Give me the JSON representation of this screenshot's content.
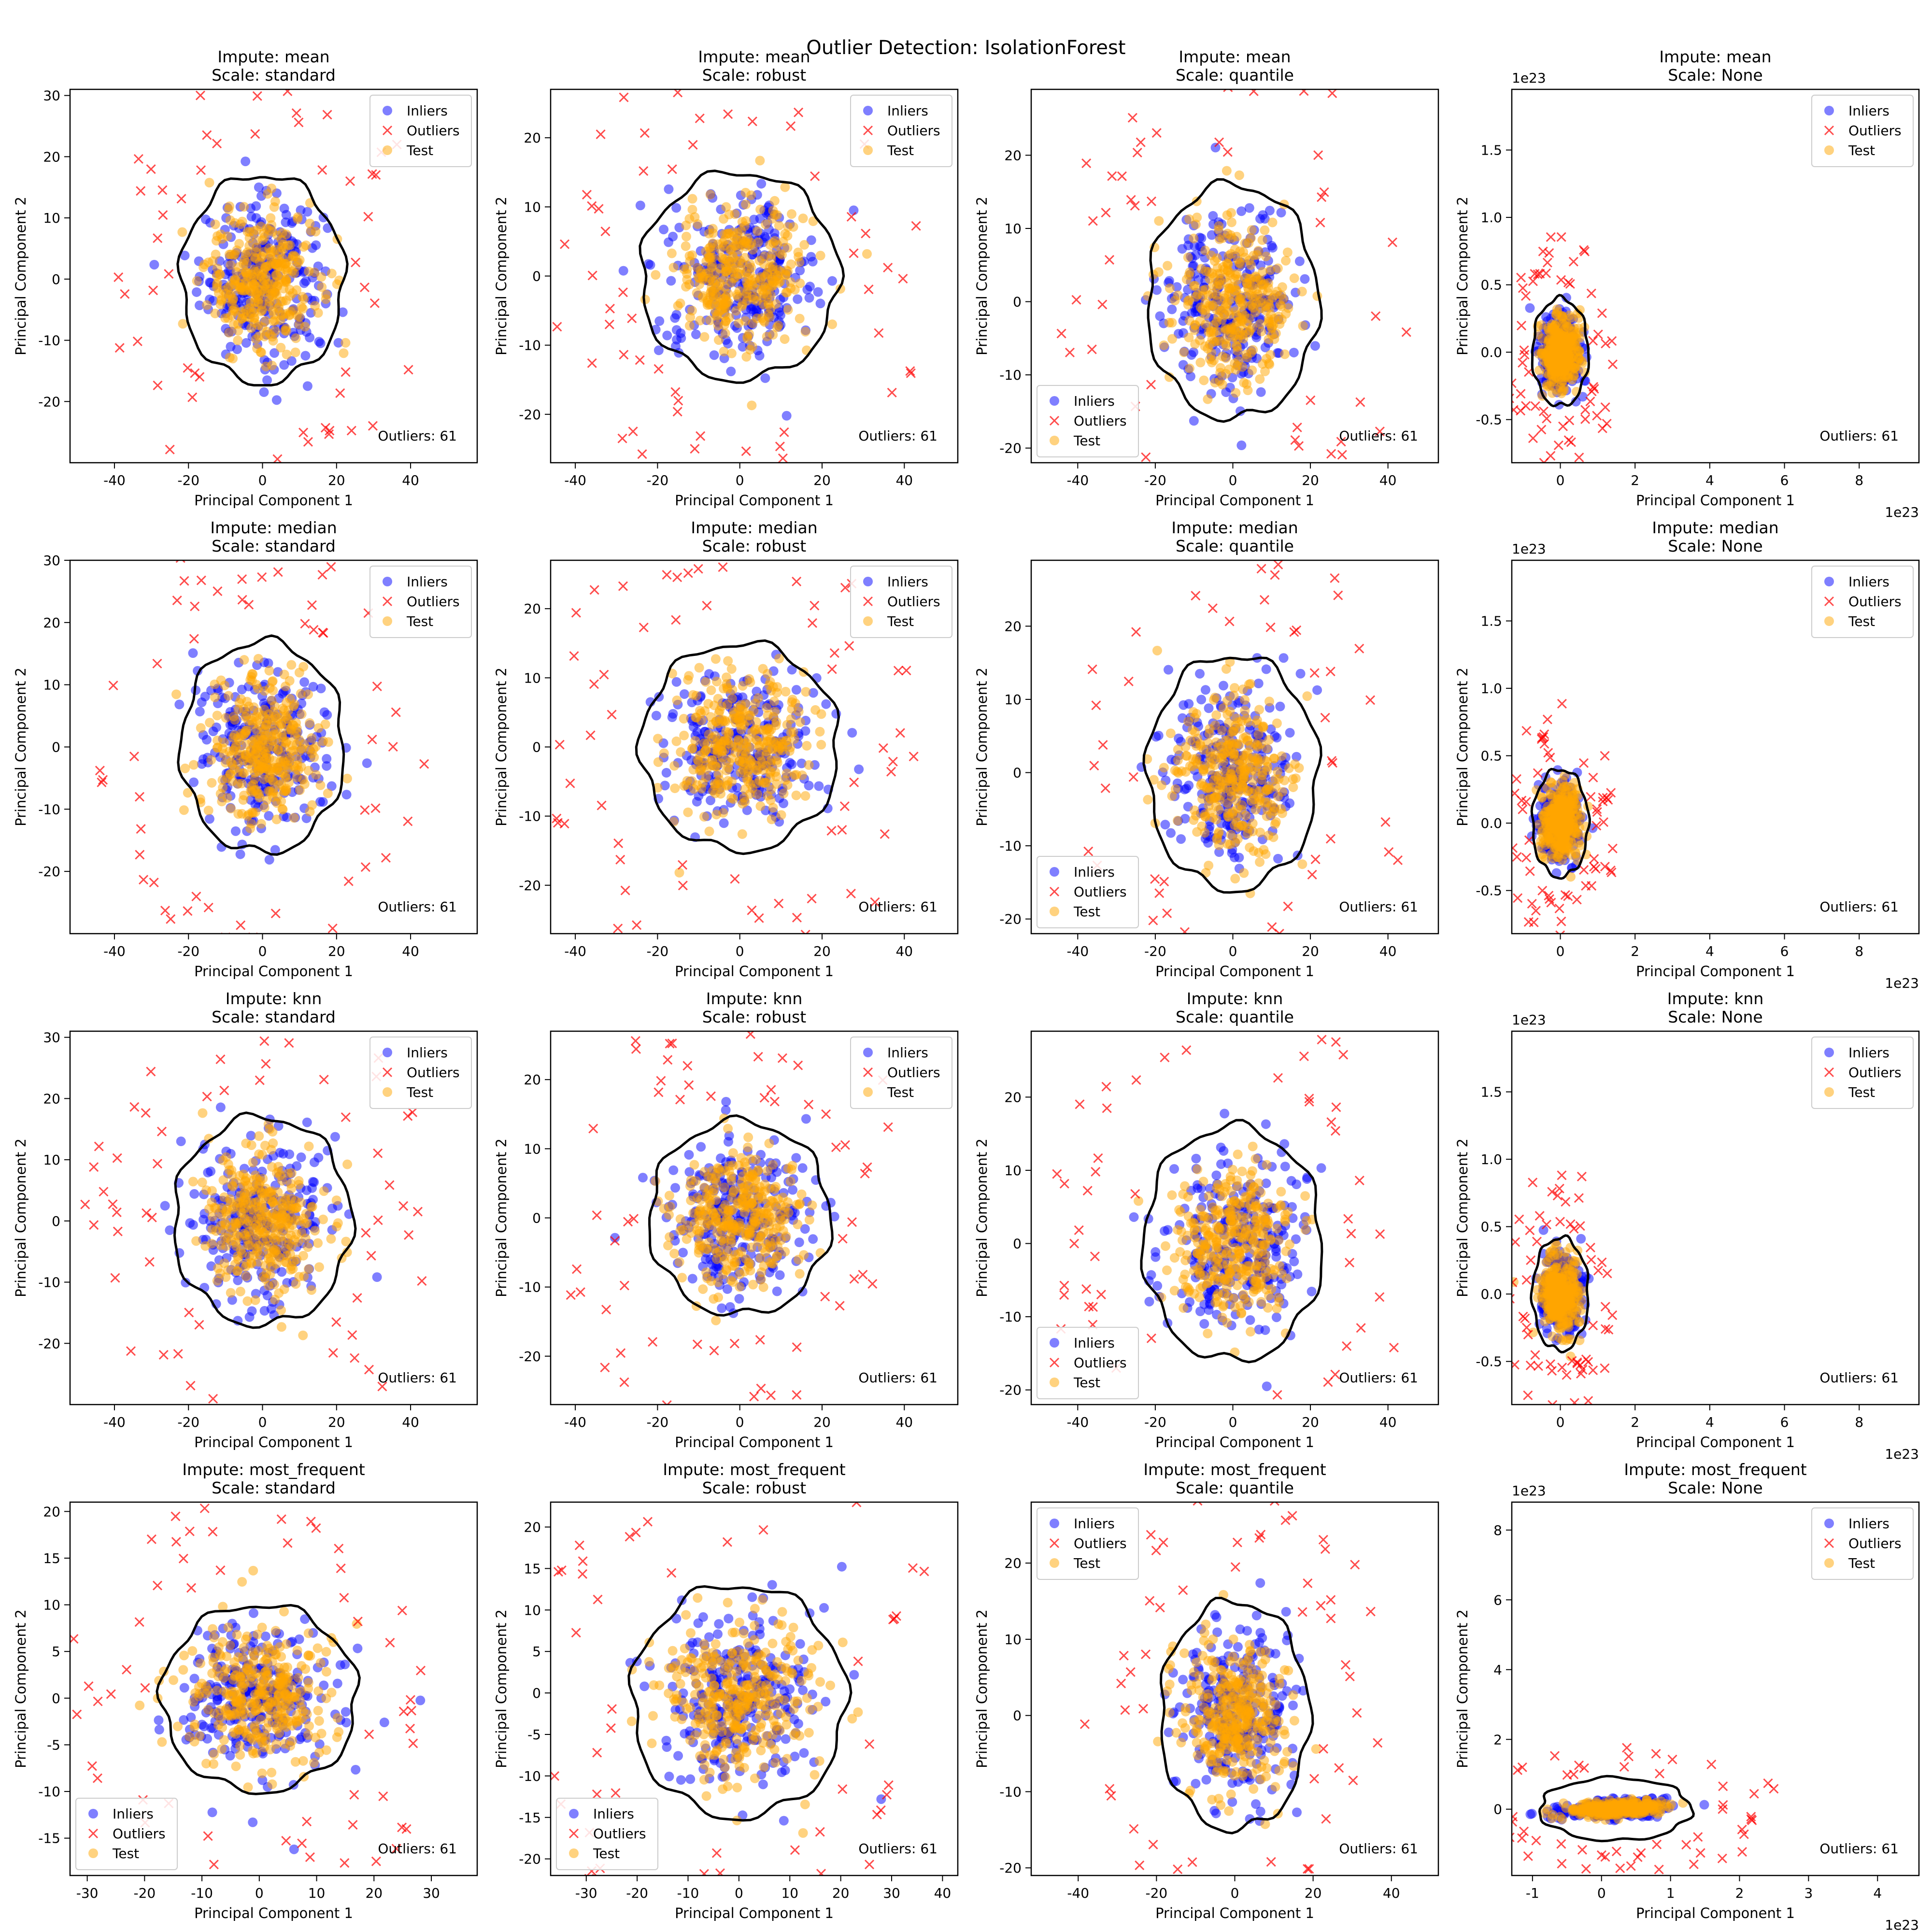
{
  "figure_title": "Outlier Detection: IsolationForest",
  "legend": {
    "inliers": "Inliers",
    "outliers": "Outliers",
    "test": "Test"
  },
  "colors": {
    "inliers": "#0000ff",
    "outliers": "#ff0000",
    "test": "#ffa500",
    "contour": "#000000"
  },
  "chart_data": [
    {
      "type": "scatter",
      "row": 0,
      "col": 0,
      "title": "Impute: mean\nScale: standard",
      "xlabel": "Principal Component 1",
      "ylabel": "Principal Component 2",
      "xlim": [
        -52,
        58
      ],
      "ylim": [
        -30,
        31
      ],
      "xticks": [
        -40,
        -20,
        0,
        20,
        40
      ],
      "yticks": [
        -20,
        -10,
        0,
        10,
        20,
        30
      ],
      "legend_loc": "upper right",
      "annotation": "Outliers: 61",
      "outlier_count": 61,
      "cluster": {
        "cx": 0,
        "cy": 0,
        "rx": 22,
        "ry": 17
      }
    },
    {
      "type": "scatter",
      "row": 0,
      "col": 1,
      "title": "Impute: mean\nScale: robust",
      "xlabel": "Principal Component 1",
      "ylabel": "Principal Component 2",
      "xlim": [
        -46,
        53
      ],
      "ylim": [
        -27,
        27
      ],
      "xticks": [
        -40,
        -20,
        0,
        20,
        40
      ],
      "yticks": [
        -20,
        -10,
        0,
        10,
        20
      ],
      "legend_loc": "upper right",
      "annotation": "Outliers: 61",
      "outlier_count": 61,
      "cluster": {
        "cx": 0,
        "cy": 0,
        "rx": 24,
        "ry": 15
      }
    },
    {
      "type": "scatter",
      "row": 0,
      "col": 2,
      "title": "Impute: mean\nScale: quantile",
      "xlabel": "Principal Component 1",
      "ylabel": "Principal Component 2",
      "xlim": [
        -52,
        53
      ],
      "ylim": [
        -22,
        29
      ],
      "xticks": [
        -40,
        -20,
        0,
        20,
        40
      ],
      "yticks": [
        -20,
        -10,
        0,
        10,
        20
      ],
      "legend_loc": "lower left",
      "annotation": "Outliers: 61",
      "outlier_count": 61,
      "cluster": {
        "cx": 0,
        "cy": 0,
        "rx": 22,
        "ry": 16
      }
    },
    {
      "type": "scatter",
      "row": 0,
      "col": 3,
      "title": "Impute: mean\nScale: None",
      "xlabel": "Principal Component 1",
      "ylabel": "Principal Component 2",
      "xlim": [
        -1.3,
        9.6
      ],
      "ylim": [
        -0.82,
        1.95
      ],
      "xticks": [
        0,
        2,
        4,
        6,
        8
      ],
      "yticks": [
        -0.5,
        0.0,
        0.5,
        1.0,
        1.5
      ],
      "x_offset_label": "1e23",
      "y_offset_label": "1e23",
      "legend_loc": "upper right",
      "annotation": "Outliers: 61",
      "outlier_count": 61,
      "cluster": {
        "cx": 0,
        "cy": 0,
        "rx": 0.75,
        "ry": 0.4
      }
    },
    {
      "type": "scatter",
      "row": 1,
      "col": 0,
      "title": "Impute: median\nScale: standard",
      "xlabel": "Principal Component 1",
      "ylabel": "Principal Component 2",
      "xlim": [
        -52,
        58
      ],
      "ylim": [
        -30,
        30
      ],
      "xticks": [
        -40,
        -20,
        0,
        20,
        40
      ],
      "yticks": [
        -20,
        -10,
        0,
        10,
        20,
        30
      ],
      "legend_loc": "upper right",
      "annotation": "Outliers: 61",
      "outlier_count": 61,
      "cluster": {
        "cx": 0,
        "cy": 0,
        "rx": 22,
        "ry": 17
      }
    },
    {
      "type": "scatter",
      "row": 1,
      "col": 1,
      "title": "Impute: median\nScale: robust",
      "xlabel": "Principal Component 1",
      "ylabel": "Principal Component 2",
      "xlim": [
        -46,
        53
      ],
      "ylim": [
        -27,
        27
      ],
      "xticks": [
        -40,
        -20,
        0,
        20,
        40
      ],
      "yticks": [
        -20,
        -10,
        0,
        10,
        20
      ],
      "legend_loc": "upper right",
      "annotation": "Outliers: 61",
      "outlier_count": 61,
      "cluster": {
        "cx": 0,
        "cy": 0,
        "rx": 24,
        "ry": 15
      }
    },
    {
      "type": "scatter",
      "row": 1,
      "col": 2,
      "title": "Impute: median\nScale: quantile",
      "xlabel": "Principal Component 1",
      "ylabel": "Principal Component 2",
      "xlim": [
        -52,
        53
      ],
      "ylim": [
        -22,
        29
      ],
      "xticks": [
        -40,
        -20,
        0,
        20,
        40
      ],
      "yticks": [
        -20,
        -10,
        0,
        10,
        20
      ],
      "legend_loc": "lower left",
      "annotation": "Outliers: 61",
      "outlier_count": 61,
      "cluster": {
        "cx": 0,
        "cy": 0,
        "rx": 22,
        "ry": 16
      }
    },
    {
      "type": "scatter",
      "row": 1,
      "col": 3,
      "title": "Impute: median\nScale: None",
      "xlabel": "Principal Component 1",
      "ylabel": "Principal Component 2",
      "xlim": [
        -1.3,
        9.6
      ],
      "ylim": [
        -0.82,
        1.95
      ],
      "xticks": [
        0,
        2,
        4,
        6,
        8
      ],
      "yticks": [
        -0.5,
        0.0,
        0.5,
        1.0,
        1.5
      ],
      "x_offset_label": "1e23",
      "y_offset_label": "1e23",
      "legend_loc": "upper right",
      "annotation": "Outliers: 61",
      "outlier_count": 61,
      "cluster": {
        "cx": 0,
        "cy": 0,
        "rx": 0.75,
        "ry": 0.4
      }
    },
    {
      "type": "scatter",
      "row": 2,
      "col": 0,
      "title": "Impute: knn\nScale: standard",
      "xlabel": "Principal Component 1",
      "ylabel": "Principal Component 2",
      "xlim": [
        -52,
        58
      ],
      "ylim": [
        -30,
        31
      ],
      "xticks": [
        -40,
        -20,
        0,
        20,
        40
      ],
      "yticks": [
        -20,
        -10,
        0,
        10,
        20,
        30
      ],
      "legend_loc": "upper right",
      "annotation": "Outliers: 61",
      "outlier_count": 61,
      "cluster": {
        "cx": 0,
        "cy": 0,
        "rx": 24,
        "ry": 17
      }
    },
    {
      "type": "scatter",
      "row": 2,
      "col": 1,
      "title": "Impute: knn\nScale: robust",
      "xlabel": "Principal Component 1",
      "ylabel": "Principal Component 2",
      "xlim": [
        -46,
        53
      ],
      "ylim": [
        -27,
        27
      ],
      "xticks": [
        -40,
        -20,
        0,
        20,
        40
      ],
      "yticks": [
        -20,
        -10,
        0,
        10,
        20
      ],
      "legend_loc": "upper right",
      "annotation": "Outliers: 61",
      "outlier_count": 61,
      "cluster": {
        "cx": 0,
        "cy": 0,
        "rx": 22,
        "ry": 14
      }
    },
    {
      "type": "scatter",
      "row": 2,
      "col": 2,
      "title": "Impute: knn\nScale: quantile",
      "xlabel": "Principal Component 1",
      "ylabel": "Principal Component 2",
      "xlim": [
        -52,
        53
      ],
      "ylim": [
        -22,
        29
      ],
      "xticks": [
        -40,
        -20,
        0,
        20,
        40
      ],
      "yticks": [
        -20,
        -10,
        0,
        10,
        20
      ],
      "legend_loc": "lower left",
      "annotation": "Outliers: 61",
      "outlier_count": 61,
      "cluster": {
        "cx": 0,
        "cy": 0,
        "rx": 23,
        "ry": 16
      }
    },
    {
      "type": "scatter",
      "row": 2,
      "col": 3,
      "title": "Impute: knn\nScale: None",
      "xlabel": "Principal Component 1",
      "ylabel": "Principal Component 2",
      "xlim": [
        -1.3,
        9.6
      ],
      "ylim": [
        -0.82,
        1.95
      ],
      "xticks": [
        0,
        2,
        4,
        6,
        8
      ],
      "yticks": [
        -0.5,
        0.0,
        0.5,
        1.0,
        1.5
      ],
      "x_offset_label": "1e23",
      "y_offset_label": "1e23",
      "legend_loc": "upper right",
      "annotation": "Outliers: 61",
      "outlier_count": 61,
      "cluster": {
        "cx": 0,
        "cy": 0,
        "rx": 0.75,
        "ry": 0.42
      }
    },
    {
      "type": "scatter",
      "row": 3,
      "col": 0,
      "title": "Impute: most_frequent\nScale: standard",
      "xlabel": "Principal Component 1",
      "ylabel": "Principal Component 2",
      "xlim": [
        -33,
        38
      ],
      "ylim": [
        -19,
        21
      ],
      "xticks": [
        -30,
        -20,
        -10,
        0,
        10,
        20,
        30
      ],
      "yticks": [
        -15,
        -10,
        -5,
        0,
        5,
        10,
        15,
        20
      ],
      "legend_loc": "lower left",
      "annotation": "Outliers: 61",
      "outlier_count": 61,
      "cluster": {
        "cx": 0,
        "cy": 0,
        "rx": 17,
        "ry": 10
      }
    },
    {
      "type": "scatter",
      "row": 3,
      "col": 1,
      "title": "Impute: most_frequent\nScale: robust",
      "xlabel": "Principal Component 1",
      "ylabel": "Principal Component 2",
      "xlim": [
        -37,
        43
      ],
      "ylim": [
        -22,
        23
      ],
      "xticks": [
        -30,
        -20,
        -10,
        0,
        10,
        20,
        30,
        40
      ],
      "yticks": [
        -20,
        -15,
        -10,
        -5,
        0,
        5,
        10,
        15,
        20
      ],
      "legend_loc": "lower left",
      "annotation": "Outliers: 61",
      "outlier_count": 61,
      "cluster": {
        "cx": 0,
        "cy": -1,
        "rx": 21,
        "ry": 14
      }
    },
    {
      "type": "scatter",
      "row": 3,
      "col": 2,
      "title": "Impute: most_frequent\nScale: quantile",
      "xlabel": "Principal Component 1",
      "ylabel": "Principal Component 2",
      "xlim": [
        -52,
        52
      ],
      "ylim": [
        -21,
        28
      ],
      "xticks": [
        -40,
        -20,
        0,
        20,
        40
      ],
      "yticks": [
        -20,
        -10,
        0,
        10,
        20
      ],
      "legend_loc": "upper left",
      "annotation": "Outliers: 61",
      "outlier_count": 61,
      "cluster": {
        "cx": 0,
        "cy": 0,
        "rx": 19,
        "ry": 15
      }
    },
    {
      "type": "scatter",
      "row": 3,
      "col": 3,
      "title": "Impute: most_frequent\nScale: None",
      "xlabel": "Principal Component 1",
      "ylabel": "Principal Component 2",
      "xlim": [
        -1.3,
        4.6
      ],
      "ylim": [
        -1.9,
        8.8
      ],
      "xticks": [
        -1,
        0,
        1,
        2,
        3,
        4
      ],
      "yticks": [
        0,
        2,
        4,
        6,
        8
      ],
      "x_offset_label": "1e23",
      "y_offset_label": "1e23",
      "legend_loc": "upper right",
      "annotation": "Outliers: 61",
      "outlier_count": 61,
      "cluster": {
        "cx": 0.2,
        "cy": 0,
        "rx": 1.1,
        "ry": 0.9
      }
    }
  ]
}
